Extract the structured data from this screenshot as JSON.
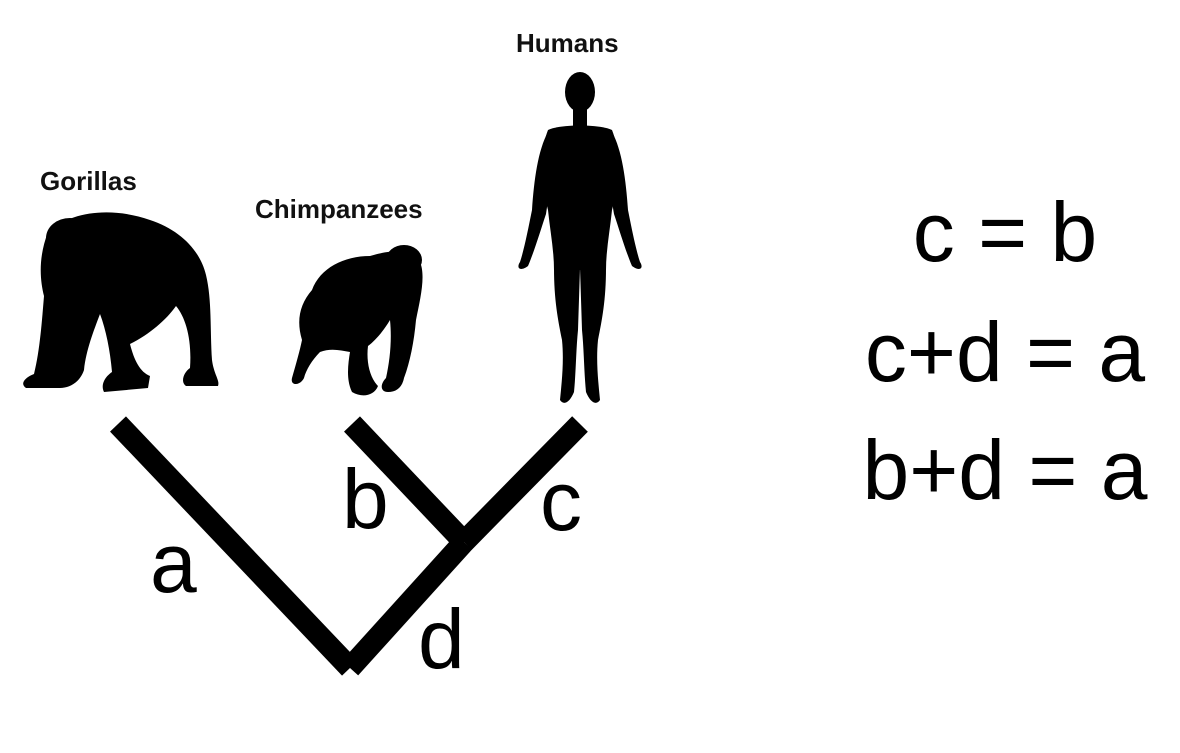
{
  "species": {
    "gorillas": "Gorillas",
    "chimpanzees": "Chimpanzees",
    "humans": "Humans"
  },
  "branches": {
    "a": "a",
    "b": "b",
    "c": "c",
    "d": "d"
  },
  "equations": [
    "c = b",
    "c+d = a",
    "b+d = a"
  ]
}
